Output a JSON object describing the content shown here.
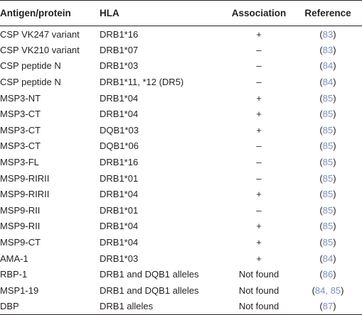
{
  "headers": {
    "antigen": "Antigen/protein",
    "hla": "HLA",
    "association": "Association",
    "reference": "Reference"
  },
  "rows": [
    {
      "antigen": "CSP VK247 variant",
      "hla": "DRB1*16",
      "association": "+",
      "ref": "83"
    },
    {
      "antigen": "CSP VK210 variant",
      "hla": "DRB1*07",
      "association": "–",
      "ref": "83"
    },
    {
      "antigen": "CSP peptide N",
      "hla": "DRB1*03",
      "association": "–",
      "ref": "84"
    },
    {
      "antigen": "CSP peptide N",
      "hla": "DRB1*11, *12 (DR5)",
      "association": "–",
      "ref": "84"
    },
    {
      "antigen": "MSP3-NT",
      "hla": "DRB1*04",
      "association": "+",
      "ref": "85"
    },
    {
      "antigen": "MSP3-CT",
      "hla": "DRB1*04",
      "association": "+",
      "ref": "85"
    },
    {
      "antigen": "MSP3-CT",
      "hla": "DQB1*03",
      "association": "+",
      "ref": "85"
    },
    {
      "antigen": "MSP3-CT",
      "hla": "DQB1*06",
      "association": "–",
      "ref": "85"
    },
    {
      "antigen": "MSP3-FL",
      "hla": "DRB1*16",
      "association": "–",
      "ref": "85"
    },
    {
      "antigen": "MSP9-RIRII",
      "hla": "DRB1*01",
      "association": "–",
      "ref": "85"
    },
    {
      "antigen": "MSP9-RIRII",
      "hla": "DRB1*04",
      "association": "+",
      "ref": "85"
    },
    {
      "antigen": "MSP9-RII",
      "hla": "DRB1*01",
      "association": "–",
      "ref": "85"
    },
    {
      "antigen": "MSP9-RII",
      "hla": "DRB1*04",
      "association": "+",
      "ref": "85"
    },
    {
      "antigen": "MSP9-CT",
      "hla": "DRB1*04",
      "association": "+",
      "ref": "85"
    },
    {
      "antigen": "AMA-1",
      "hla": "DRB1*03",
      "association": "+",
      "ref": "84"
    },
    {
      "antigen": "RBP-1",
      "hla": "DRB1 and DQB1 alleles",
      "association": "Not found",
      "ref": "86"
    },
    {
      "antigen": "MSP1-19",
      "hla": "DRB1 and DQB1 alleles",
      "association": "Not found",
      "ref": "84, 85"
    },
    {
      "antigen": "DBP",
      "hla": "DRB1 alleles",
      "association": "Not found",
      "ref": "87"
    }
  ],
  "colors": {
    "text": "#231f20",
    "reference_link": "#7d8dbf",
    "rule": "#231f20"
  }
}
